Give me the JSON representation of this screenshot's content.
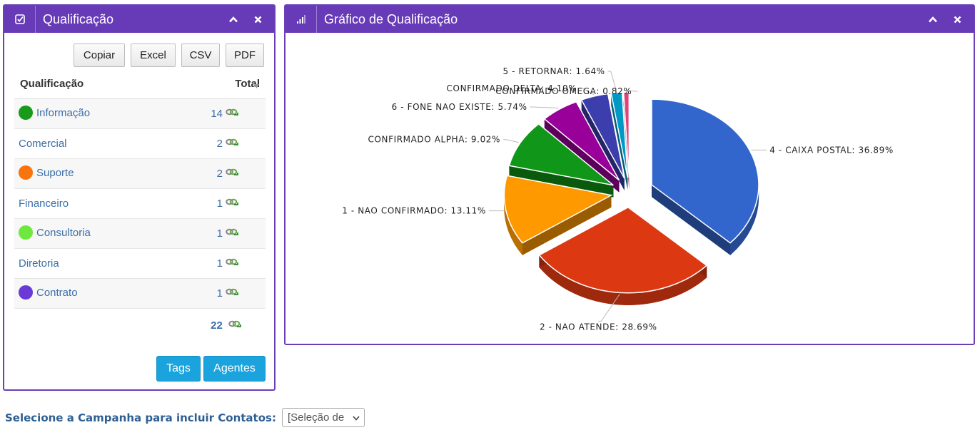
{
  "qualificacao_widget": {
    "title": "Qualificação",
    "icon": "check-square-icon",
    "export_buttons": [
      "Copiar",
      "Excel",
      "CSV",
      "PDF"
    ],
    "table": {
      "headers": {
        "name": "Qualificação",
        "total": "Total"
      },
      "rows": [
        {
          "name": "Informação",
          "total": "14",
          "color": "#1a9a1a"
        },
        {
          "name": "Comercial",
          "total": "2",
          "color": ""
        },
        {
          "name": "Suporte",
          "total": "2",
          "color": "#f7740f"
        },
        {
          "name": "Financeiro",
          "total": "1",
          "color": ""
        },
        {
          "name": "Consultoria",
          "total": "1",
          "color": "#6ee83e"
        },
        {
          "name": "Diretoria",
          "total": "1",
          "color": ""
        },
        {
          "name": "Contrato",
          "total": "1",
          "color": "#6a3ad6"
        }
      ],
      "footer_total": "22"
    },
    "buttons": {
      "tags": "Tags",
      "agentes": "Agentes"
    }
  },
  "grafico_widget": {
    "title": "Gráfico de Qualificação",
    "icon": "bar-signal-icon"
  },
  "chart_data": {
    "type": "pie",
    "title": "",
    "slices": [
      {
        "label": "4 - CAIXA POSTAL: 36.89%",
        "name": "4 - CAIXA POSTAL",
        "value": 36.89,
        "color": "#3366cc"
      },
      {
        "label": "2 - NAO ATENDE: 28.69%",
        "name": "2 - NAO ATENDE",
        "value": 28.69,
        "color": "#dc3912"
      },
      {
        "label": "1 - NAO CONFIRMADO: 13.11%",
        "name": "1 - NAO CONFIRMADO",
        "value": 13.11,
        "color": "#ff9900"
      },
      {
        "label": "CONFIRMADO ALPHA: 9.02%",
        "name": "CONFIRMADO ALPHA",
        "value": 9.02,
        "color": "#109618"
      },
      {
        "label": "6 - FONE NAO EXISTE: 5.74%",
        "name": "6 - FONE NAO EXISTE",
        "value": 5.74,
        "color": "#990099"
      },
      {
        "label": "CONFIRMADO DELTA: 4.10%",
        "name": "CONFIRMADO DELTA",
        "value": 4.1,
        "color": "#3b3eac"
      },
      {
        "label": "5 - RETORNAR: 1.64%",
        "name": "5 - RETORNAR",
        "value": 1.64,
        "color": "#0099c6"
      },
      {
        "label": "CONFIRMADO OMEGA: 0.82%",
        "name": "CONFIRMADO OMEGA",
        "value": 0.82,
        "color": "#dd4477"
      }
    ],
    "legend": "none",
    "three_d": true,
    "exploded": true
  },
  "campanha": {
    "label": "Selecione a Campanha para incluir Contatos:",
    "selected": "[Seleção de"
  },
  "colors": {
    "header": "#673ab7",
    "button_blue": "#1aa3dd",
    "link_text": "#3b6ea7"
  }
}
